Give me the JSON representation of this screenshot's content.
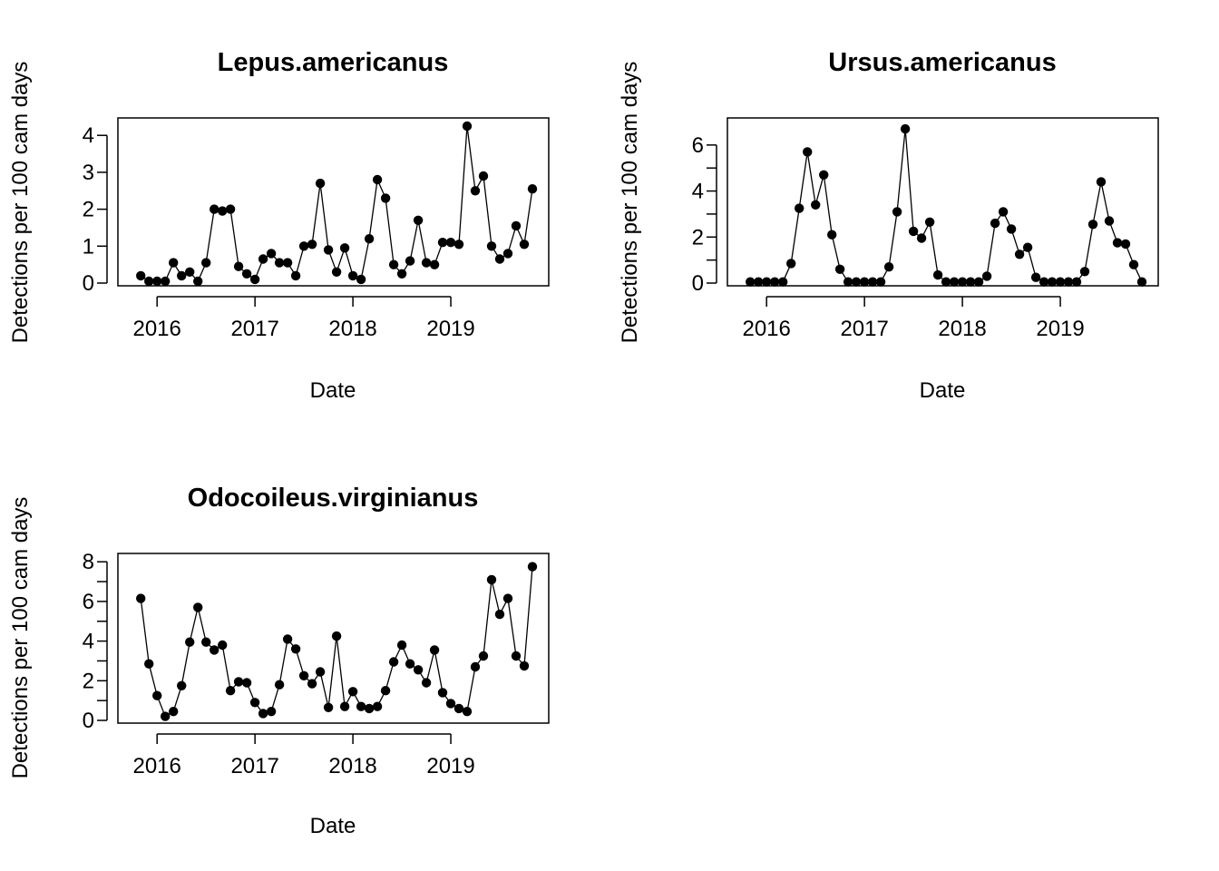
{
  "chart_data": [
    {
      "type": "line",
      "title": "Lepus.americanus",
      "xlabel": "Date",
      "ylabel": "Detections per 100 cam days",
      "x_ticks": [
        "2016",
        "2017",
        "2018",
        "2019"
      ],
      "y_ticks": [
        0,
        1,
        2,
        3,
        4
      ],
      "ylim": [
        0,
        4.3
      ],
      "x": [
        "2015-11",
        "2015-12",
        "2016-01",
        "2016-02",
        "2016-03",
        "2016-04",
        "2016-05",
        "2016-06",
        "2016-07",
        "2016-08",
        "2016-09",
        "2016-10",
        "2016-11",
        "2016-12",
        "2017-01",
        "2017-02",
        "2017-03",
        "2017-04",
        "2017-05",
        "2017-06",
        "2017-07",
        "2017-08",
        "2017-09",
        "2017-10",
        "2017-11",
        "2017-12",
        "2018-01",
        "2018-02",
        "2018-03",
        "2018-04",
        "2018-05",
        "2018-06",
        "2018-07",
        "2018-08",
        "2018-09",
        "2018-10",
        "2018-11",
        "2018-12",
        "2019-01",
        "2019-02",
        "2019-03",
        "2019-04",
        "2019-05",
        "2019-06",
        "2019-07",
        "2019-08",
        "2019-09",
        "2019-10",
        "2019-11"
      ],
      "values": [
        0.2,
        0.05,
        0.05,
        0.05,
        0.55,
        0.2,
        0.3,
        0.05,
        0.55,
        2.0,
        1.95,
        2.0,
        0.45,
        0.25,
        0.1,
        0.65,
        0.8,
        0.55,
        0.55,
        0.2,
        1.0,
        1.05,
        2.7,
        0.9,
        0.3,
        0.95,
        0.2,
        0.1,
        1.2,
        2.8,
        2.3,
        0.5,
        0.25,
        0.6,
        1.7,
        0.55,
        0.5,
        1.1,
        1.1,
        1.05,
        4.25,
        2.5,
        2.9,
        1.0,
        0.65,
        0.8,
        1.55,
        1.05,
        2.55
      ]
    },
    {
      "type": "line",
      "title": "Ursus.americanus",
      "xlabel": "Date",
      "ylabel": "Detections per 100 cam days",
      "x_ticks": [
        "2016",
        "2017",
        "2018",
        "2019"
      ],
      "y_ticks": [
        0,
        2,
        4,
        6
      ],
      "ylim": [
        0,
        6.9
      ],
      "x": [
        "2015-11",
        "2015-12",
        "2016-01",
        "2016-02",
        "2016-03",
        "2016-04",
        "2016-05",
        "2016-06",
        "2016-07",
        "2016-08",
        "2016-09",
        "2016-10",
        "2016-11",
        "2016-12",
        "2017-01",
        "2017-02",
        "2017-03",
        "2017-04",
        "2017-05",
        "2017-06",
        "2017-07",
        "2017-08",
        "2017-09",
        "2017-10",
        "2017-11",
        "2017-12",
        "2018-01",
        "2018-02",
        "2018-03",
        "2018-04",
        "2018-05",
        "2018-06",
        "2018-07",
        "2018-08",
        "2018-09",
        "2018-10",
        "2018-11",
        "2018-12",
        "2019-01",
        "2019-02",
        "2019-03",
        "2019-04",
        "2019-05",
        "2019-06",
        "2019-07",
        "2019-08",
        "2019-09",
        "2019-10",
        "2019-11"
      ],
      "values": [
        0.05,
        0.05,
        0.05,
        0.05,
        0.05,
        0.85,
        3.25,
        5.7,
        3.4,
        4.7,
        2.1,
        0.6,
        0.05,
        0.05,
        0.05,
        0.05,
        0.05,
        0.7,
        3.1,
        6.7,
        2.25,
        1.95,
        2.65,
        0.35,
        0.05,
        0.05,
        0.05,
        0.05,
        0.05,
        0.3,
        2.6,
        3.1,
        2.35,
        1.25,
        1.55,
        0.25,
        0.05,
        0.05,
        0.05,
        0.05,
        0.05,
        0.5,
        2.55,
        4.4,
        2.7,
        1.75,
        1.7,
        0.8,
        0.05
      ]
    },
    {
      "type": "line",
      "title": "Odocoileus.virginianus",
      "xlabel": "Date",
      "ylabel": "Detections per 100 cam days",
      "x_ticks": [
        "2016",
        "2017",
        "2018",
        "2019"
      ],
      "y_ticks": [
        0,
        2,
        4,
        6,
        8
      ],
      "ylim": [
        0,
        8.1
      ],
      "x": [
        "2015-11",
        "2015-12",
        "2016-01",
        "2016-02",
        "2016-03",
        "2016-04",
        "2016-05",
        "2016-06",
        "2016-07",
        "2016-08",
        "2016-09",
        "2016-10",
        "2016-11",
        "2016-12",
        "2017-01",
        "2017-02",
        "2017-03",
        "2017-04",
        "2017-05",
        "2017-06",
        "2017-07",
        "2017-08",
        "2017-09",
        "2017-10",
        "2017-11",
        "2017-12",
        "2018-01",
        "2018-02",
        "2018-03",
        "2018-04",
        "2018-05",
        "2018-06",
        "2018-07",
        "2018-08",
        "2018-09",
        "2018-10",
        "2018-11",
        "2018-12",
        "2019-01",
        "2019-02",
        "2019-03",
        "2019-04",
        "2019-05",
        "2019-06",
        "2019-07",
        "2019-08",
        "2019-09",
        "2019-10",
        "2019-11"
      ],
      "values": [
        6.15,
        2.85,
        1.25,
        0.2,
        0.45,
        1.75,
        3.95,
        5.7,
        3.95,
        3.55,
        3.8,
        1.5,
        1.95,
        1.9,
        0.9,
        0.35,
        0.45,
        1.8,
        4.1,
        3.6,
        2.25,
        1.85,
        2.45,
        0.65,
        4.25,
        0.7,
        1.45,
        0.7,
        0.6,
        0.7,
        1.5,
        2.95,
        3.8,
        2.85,
        2.55,
        1.9,
        3.55,
        1.4,
        0.85,
        0.6,
        0.45,
        2.7,
        3.25,
        7.1,
        5.35,
        6.15,
        3.25,
        2.75,
        7.75
      ]
    }
  ]
}
